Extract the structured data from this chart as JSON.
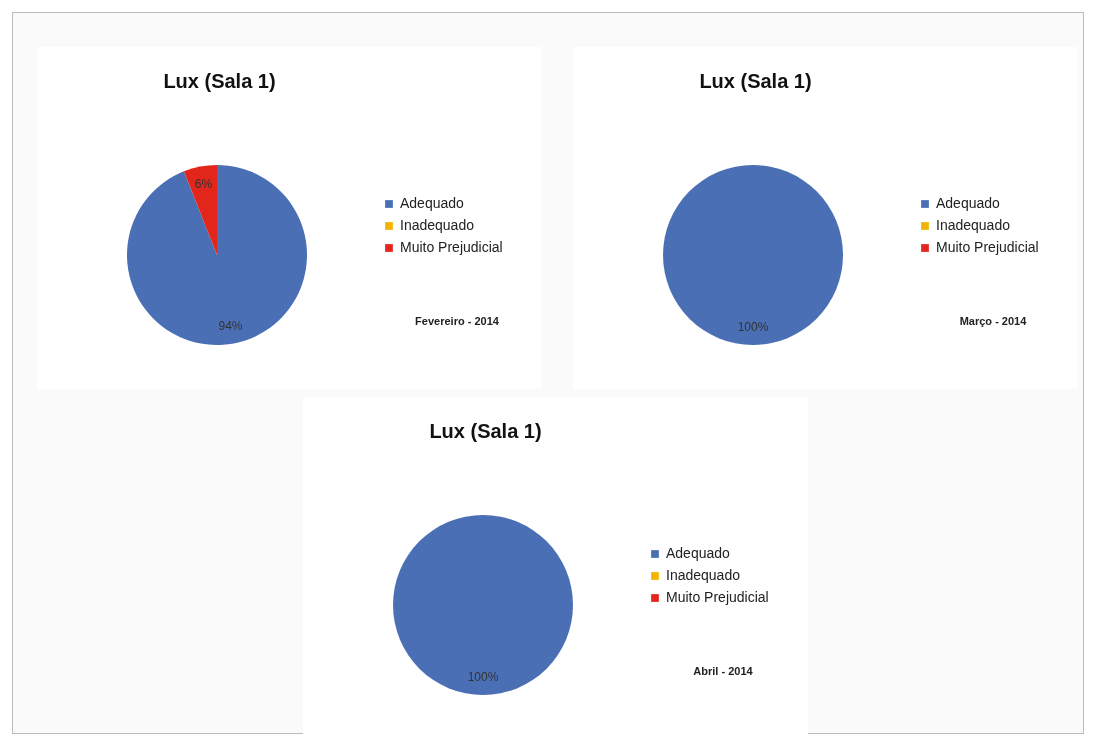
{
  "chart_data": [
    {
      "type": "pie",
      "title": "Lux (Sala 1)",
      "categories": [
        "Adequado",
        "Inadequado",
        "Muito Prejudicial"
      ],
      "values": [
        94,
        0,
        6
      ],
      "colors": [
        "#4a6fb5",
        "#f2b400",
        "#e3261c"
      ],
      "value_labels": [
        "94%",
        null,
        "6%"
      ],
      "legend": "right",
      "annotations": [
        "Fevereiro  - 2014"
      ]
    },
    {
      "type": "pie",
      "title": "Lux (Sala 1)",
      "categories": [
        "Adequado",
        "Inadequado",
        "Muito Prejudicial"
      ],
      "values": [
        100,
        0,
        0
      ],
      "colors": [
        "#4a6fb5",
        "#f2b400",
        "#e3261c"
      ],
      "value_labels": [
        "100%",
        null,
        null
      ],
      "legend": "right",
      "annotations": [
        "Março  - 2014"
      ]
    },
    {
      "type": "pie",
      "title": "Lux (Sala 1)",
      "categories": [
        "Adequado",
        "Inadequado",
        "Muito Prejudicial"
      ],
      "values": [
        100,
        0,
        0
      ],
      "colors": [
        "#4a6fb5",
        "#f2b400",
        "#e3261c"
      ],
      "value_labels": [
        "100%",
        null,
        null
      ],
      "legend": "right",
      "annotations": [
        "Abril  - 2014"
      ]
    }
  ]
}
